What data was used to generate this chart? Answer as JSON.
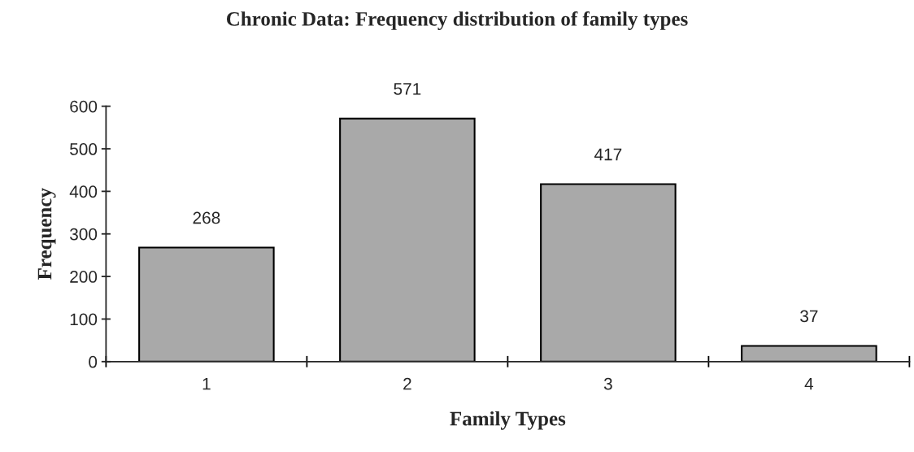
{
  "chart_data": {
    "type": "bar",
    "title": "Chronic Data: Frequency distribution of family types",
    "xlabel": "Family Types",
    "ylabel": "Frequency",
    "categories": [
      "1",
      "2",
      "3",
      "4"
    ],
    "values": [
      268,
      571,
      417,
      37
    ],
    "color": "#a9a9a9",
    "ylim": [
      0,
      600
    ],
    "yticks": [
      0,
      100,
      200,
      300,
      400,
      500,
      600
    ],
    "data_labels": true,
    "grid": false,
    "legend": false
  }
}
